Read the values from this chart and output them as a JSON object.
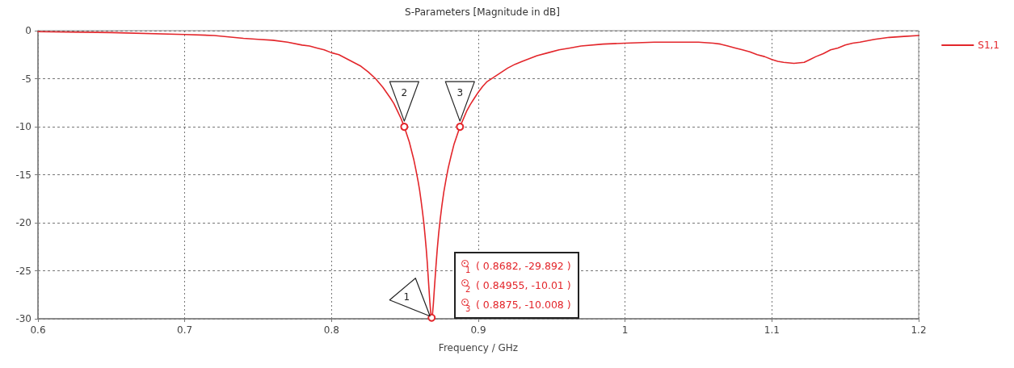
{
  "chart_data": {
    "type": "line",
    "title": "S-Parameters [Magnitude in dB]",
    "xlabel": "Frequency / GHz",
    "x": [
      0.6,
      0.65,
      0.7,
      0.72,
      0.74,
      0.75,
      0.76,
      0.77,
      0.78,
      0.785,
      0.79,
      0.795,
      0.8,
      0.805,
      0.81,
      0.815,
      0.82,
      0.825,
      0.83,
      0.835,
      0.84,
      0.8425,
      0.845,
      0.8475,
      0.84955,
      0.8515,
      0.853,
      0.8545,
      0.856,
      0.8575,
      0.859,
      0.86,
      0.861,
      0.862,
      0.863,
      0.8638,
      0.8645,
      0.8652,
      0.8658,
      0.8664,
      0.867,
      0.8676,
      0.8682,
      0.8688,
      0.8694,
      0.87,
      0.8706,
      0.8712,
      0.872,
      0.873,
      0.874,
      0.8752,
      0.8765,
      0.878,
      0.8795,
      0.8815,
      0.8835,
      0.8855,
      0.8875,
      0.892,
      0.8945,
      0.897,
      0.9,
      0.903,
      0.906,
      0.91,
      0.915,
      0.92,
      0.925,
      0.93,
      0.935,
      0.94,
      0.9475,
      0.955,
      0.9625,
      0.97,
      0.985,
      1,
      1.02,
      1.04,
      1.05,
      1.06,
      1.065,
      1.07,
      1.075,
      1.08,
      1.085,
      1.09,
      1.095,
      1.1,
      1.104,
      1.108,
      1.115,
      1.122,
      1.126,
      1.13,
      1.135,
      1.14,
      1.145,
      1.15,
      1.155,
      1.16,
      1.17,
      1.18,
      1.19,
      1.2
    ],
    "series": [
      {
        "name": "S1,1",
        "color": "#e3262b",
        "values": [
          -0.1,
          -0.2,
          -0.4,
          -0.5,
          -0.8,
          -0.9,
          -1.0,
          -1.2,
          -1.5,
          -1.6,
          -1.8,
          -2.0,
          -2.3,
          -2.5,
          -2.9,
          -3.3,
          -3.7,
          -4.3,
          -5.0,
          -5.9,
          -7.0,
          -7.6,
          -8.4,
          -9.2,
          -10.01,
          -10.9,
          -11.6,
          -12.5,
          -13.4,
          -14.5,
          -15.7,
          -16.6,
          -17.7,
          -18.9,
          -20.2,
          -21.5,
          -22.7,
          -24.1,
          -25.5,
          -26.9,
          -28.3,
          -29.4,
          -29.892,
          -29.5,
          -28.4,
          -27.0,
          -25.7,
          -24.4,
          -22.8,
          -21.1,
          -19.7,
          -18.2,
          -16.8,
          -15.5,
          -14.3,
          -13.0,
          -11.8,
          -10.9,
          -10.008,
          -8.4,
          -7.7,
          -7.1,
          -6.4,
          -5.8,
          -5.3,
          -4.9,
          -4.4,
          -3.9,
          -3.5,
          -3.2,
          -2.9,
          -2.6,
          -2.3,
          -2.0,
          -1.8,
          -1.6,
          -1.4,
          -1.3,
          -1.2,
          -1.2,
          -1.2,
          -1.3,
          -1.4,
          -1.6,
          -1.8,
          -2.0,
          -2.2,
          -2.5,
          -2.7,
          -3.0,
          -3.2,
          -3.3,
          -3.4,
          -3.3,
          -3.0,
          -2.7,
          -2.4,
          -2.0,
          -1.8,
          -1.5,
          -1.3,
          -1.2,
          -0.9,
          -0.7,
          -0.6,
          -0.5
        ]
      }
    ],
    "xlim": [
      0.6,
      1.2
    ],
    "xticks": [
      0.6,
      0.7,
      0.8,
      0.9,
      1,
      1.1,
      1.2
    ],
    "ylim": [
      -30,
      0
    ],
    "yticks": [
      -30,
      -25,
      -20,
      -15,
      -10,
      -5,
      0
    ],
    "grid": true,
    "legend": "top right",
    "marker": "none",
    "line_style": "solid",
    "annotations": [
      {
        "text": "1",
        "x": 0.8682,
        "y": -29.892
      },
      {
        "text": "2",
        "x": 0.84955,
        "y": -10.01
      },
      {
        "text": "3",
        "x": 0.8875,
        "y": -10.008
      },
      "( 0.8682, -29.892 )",
      "( 0.84955, -10.01 )",
      "( 0.8875, -10.008 )"
    ]
  }
}
